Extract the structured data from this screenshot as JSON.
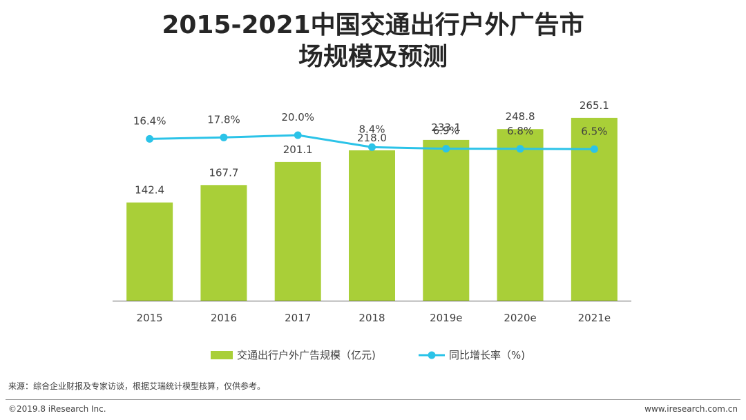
{
  "title": {
    "line1": "2015-2021中国交通出行户外广告市",
    "line2": "场规模及预测"
  },
  "colors": {
    "bar": "#a9cf38",
    "line": "#2bc3e8",
    "axis": "#595959",
    "text": "#404040"
  },
  "chart_data": {
    "type": "bar+line",
    "title": "2015-2021中国交通出行户外广告市场规模及预测",
    "categories": [
      "2015",
      "2016",
      "2017",
      "2018",
      "2019e",
      "2020e",
      "2021e"
    ],
    "series": [
      {
        "name": "交通出行户外广告规模（亿元)",
        "type": "bar",
        "values": [
          142.4,
          167.7,
          201.1,
          218.0,
          233.1,
          248.8,
          265.1
        ],
        "labels": [
          "142.4",
          "167.7",
          "201.1",
          "218.0",
          "233.1",
          "248.8",
          "265.1"
        ]
      },
      {
        "name": "同比增长率（%)",
        "type": "line",
        "values": [
          16.4,
          17.8,
          20.0,
          8.4,
          6.9,
          6.8,
          6.5
        ],
        "labels": [
          "16.4%",
          "17.8%",
          "20.0%",
          "8.4%",
          "6.9%",
          "6.8%",
          "6.5%"
        ]
      }
    ],
    "bar_ylim": [
      0,
      270
    ],
    "line_ylim": [
      -140,
      40
    ],
    "legend_position": "bottom"
  },
  "source_text": "来源：综合企业财报及专家访谈，根据艾瑞统计模型核算，仅供参考。",
  "copyright": "©2019.8 iResearch Inc.",
  "website": "www.iresearch.com.cn"
}
